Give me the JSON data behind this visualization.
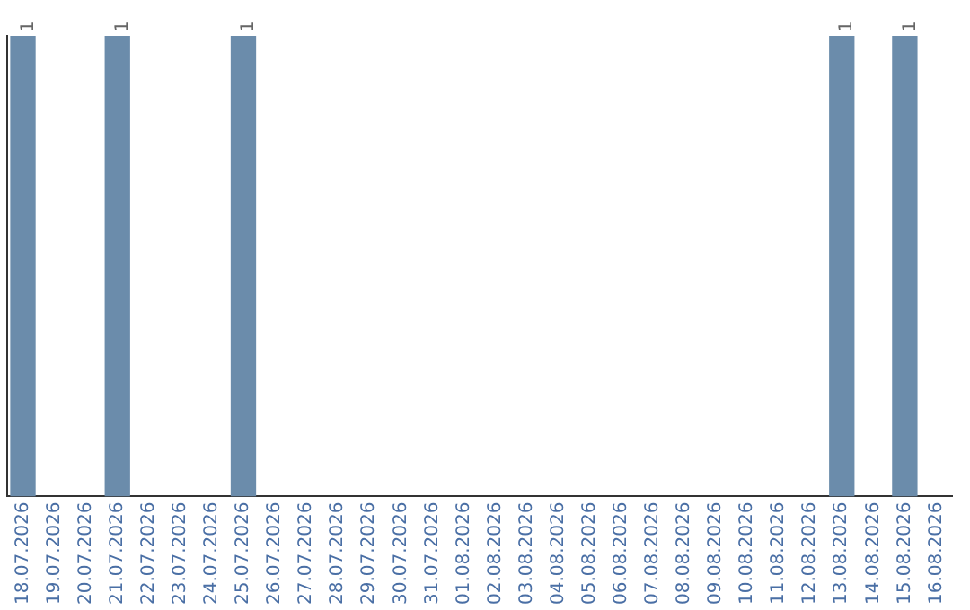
{
  "chart_data": {
    "type": "bar",
    "categories": [
      "18.07.2026",
      "19.07.2026",
      "20.07.2026",
      "21.07.2026",
      "22.07.2026",
      "23.07.2026",
      "24.07.2026",
      "25.07.2026",
      "26.07.2026",
      "27.07.2026",
      "28.07.2026",
      "29.07.2026",
      "30.07.2026",
      "31.07.2026",
      "01.08.2026",
      "02.08.2026",
      "03.08.2026",
      "04.08.2026",
      "05.08.2026",
      "06.08.2026",
      "07.08.2026",
      "08.08.2026",
      "09.08.2026",
      "10.08.2026",
      "11.08.2026",
      "12.08.2026",
      "13.08.2026",
      "14.08.2026",
      "15.08.2026",
      "16.08.2026"
    ],
    "values": [
      1,
      0,
      0,
      1,
      0,
      0,
      0,
      1,
      0,
      0,
      0,
      0,
      0,
      0,
      0,
      0,
      0,
      0,
      0,
      0,
      0,
      0,
      0,
      0,
      0,
      0,
      1,
      0,
      1,
      0
    ],
    "value_labels": [
      "1",
      null,
      null,
      "1",
      null,
      null,
      null,
      "1",
      null,
      null,
      null,
      null,
      null,
      null,
      null,
      null,
      null,
      null,
      null,
      null,
      null,
      null,
      null,
      null,
      null,
      null,
      "1",
      null,
      "1",
      null
    ],
    "color": "#6b8cab",
    "ylim": [
      0,
      1
    ],
    "grid": false,
    "legend": false,
    "tick_labels": "x"
  }
}
